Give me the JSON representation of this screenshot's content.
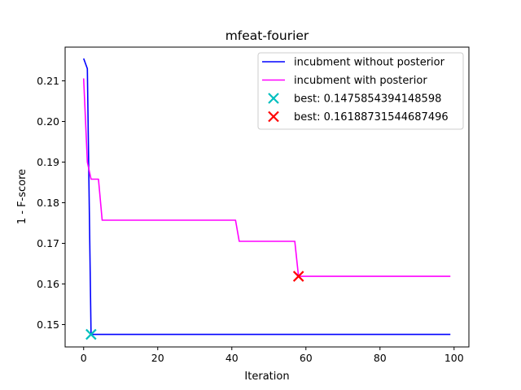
{
  "chart_data": {
    "type": "line",
    "title": "mfeat-fourier",
    "xlabel": "Iteration",
    "ylabel": "1 - F-score",
    "xlim": [
      -5,
      104
    ],
    "ylim": [
      0.1445,
      0.2183
    ],
    "xticks": [
      0,
      20,
      40,
      60,
      80,
      100
    ],
    "xtick_labels": [
      "0",
      "20",
      "40",
      "60",
      "80",
      "100"
    ],
    "yticks": [
      0.15,
      0.16,
      0.17,
      0.18,
      0.19,
      0.2,
      0.21
    ],
    "ytick_labels": [
      "0.15",
      "0.16",
      "0.17",
      "0.18",
      "0.19",
      "0.20",
      "0.21"
    ],
    "grid": false,
    "legend_position": "top-right",
    "series": [
      {
        "name": "incubment without posterior",
        "color": "#0000ff",
        "kind": "line",
        "x": [
          0,
          1,
          2,
          99
        ],
        "y": [
          0.2155,
          0.213,
          0.14759,
          0.14759
        ]
      },
      {
        "name": "incubment with posterior",
        "color": "#ff00ff",
        "kind": "line",
        "x": [
          0,
          1,
          2,
          4,
          5,
          41,
          42,
          57,
          58,
          99
        ],
        "y": [
          0.2106,
          0.19,
          0.1858,
          0.1858,
          0.1757,
          0.1757,
          0.1705,
          0.1705,
          0.16189,
          0.16189
        ]
      },
      {
        "name": "best: 0.1475854394148598",
        "color": "#00bfbf",
        "kind": "marker",
        "x": [
          2
        ],
        "y": [
          0.1475854394148598
        ]
      },
      {
        "name": "best: 0.16188731544687496",
        "color": "#ff0000",
        "kind": "marker",
        "x": [
          58
        ],
        "y": [
          0.16188731544687496
        ]
      }
    ]
  }
}
